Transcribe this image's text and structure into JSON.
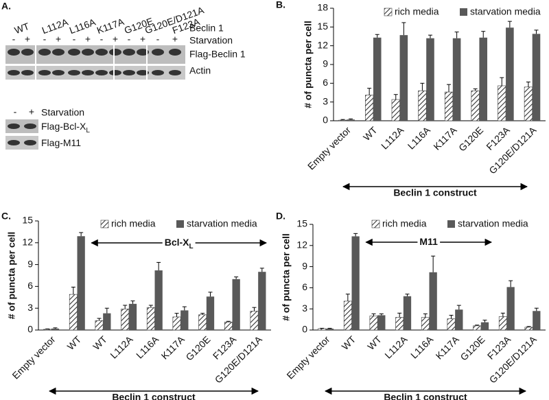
{
  "panel_a": {
    "label": "A.",
    "lanes": [
      "WT",
      "L112A",
      "L116A",
      "K117A",
      "G120E",
      "G120E/D121A",
      "F123A"
    ],
    "signs": [
      "-",
      "+"
    ],
    "rows": [
      "Beclin 1",
      "Starvation",
      "Flag-Beclin 1",
      "Actin"
    ],
    "inset": {
      "label": "Starvation",
      "rows": [
        {
          "text": "Flag-Bcl-X",
          "subscript": "L"
        },
        {
          "text": "Flag-M11"
        }
      ]
    }
  },
  "chart_data": [
    {
      "type": "bar",
      "panel": "B.",
      "ylabel": "# of puncta per cell",
      "xlabel": "Beclin 1 construct",
      "ylim": [
        0,
        18
      ],
      "yticks": [
        0,
        3,
        6,
        9,
        12,
        15,
        18
      ],
      "categories": [
        "Empty vector",
        "WT",
        "L112A",
        "L116A",
        "K117A",
        "G120E",
        "F123A",
        "G120E/D121A"
      ],
      "series": [
        {
          "name": "rich media",
          "color": "#333333",
          "pattern": "hatch",
          "values": [
            0.1,
            4.1,
            3.4,
            4.8,
            4.6,
            4.8,
            5.6,
            5.4
          ],
          "errors": [
            0.1,
            1.1,
            0.8,
            1.2,
            1.2,
            0.3,
            1.3,
            0.8
          ]
        },
        {
          "name": "starvation media",
          "color": "#595959",
          "values": [
            0.2,
            13.3,
            13.7,
            13.2,
            13.2,
            13.3,
            14.9,
            13.9
          ],
          "errors": [
            0.1,
            0.5,
            2.0,
            0.5,
            1.0,
            1.0,
            1.0,
            0.6
          ]
        }
      ]
    },
    {
      "type": "bar",
      "panel": "C.",
      "ylabel": "# of puncta per cell",
      "xlabel": "Beclin 1 construct",
      "annotation": {
        "text": "Bcl-X",
        "subscript": "L"
      },
      "ylim": [
        0,
        15
      ],
      "yticks": [
        0,
        3,
        6,
        9,
        12,
        15
      ],
      "categories": [
        "Empty vector",
        "WT",
        "WT",
        "L112A",
        "L116A",
        "K117A",
        "G120E",
        "F123A",
        "G120E/D121A"
      ],
      "series": [
        {
          "name": "rich media",
          "color": "#333333",
          "pattern": "hatch",
          "values": [
            0.1,
            4.9,
            1.3,
            2.9,
            3.1,
            1.8,
            2.1,
            1.1,
            2.6
          ],
          "errors": [
            0.05,
            1.0,
            0.3,
            0.5,
            0.3,
            0.5,
            0.2,
            0.1,
            0.5
          ]
        },
        {
          "name": "starvation media",
          "color": "#595959",
          "values": [
            0.2,
            12.9,
            2.3,
            3.6,
            8.2,
            2.7,
            4.6,
            7.0,
            8.0
          ],
          "errors": [
            0.1,
            0.5,
            0.7,
            0.4,
            1.1,
            0.5,
            0.6,
            0.3,
            0.5
          ]
        }
      ]
    },
    {
      "type": "bar",
      "panel": "D.",
      "ylabel": "# of puncta per cell",
      "xlabel": "Beclin 1 construct",
      "annotation": {
        "text": "M11"
      },
      "ylim": [
        0,
        15
      ],
      "yticks": [
        0,
        3,
        6,
        9,
        12,
        15
      ],
      "categories": [
        "Empty vector",
        "WT",
        "WT",
        "L112A",
        "L116A",
        "K117A",
        "G120E",
        "F123A",
        "G120E/D121A"
      ],
      "series": [
        {
          "name": "rich media",
          "color": "#333333",
          "pattern": "hatch",
          "values": [
            0.2,
            4.1,
            2.0,
            1.8,
            1.8,
            1.6,
            0.6,
            1.9,
            0.4
          ],
          "errors": [
            0.05,
            1.0,
            0.3,
            0.6,
            0.5,
            0.5,
            0.1,
            0.5,
            0.1
          ]
        },
        {
          "name": "starvation media",
          "color": "#595959",
          "values": [
            0.2,
            13.3,
            2.1,
            4.8,
            8.2,
            2.9,
            1.1,
            6.1,
            2.7
          ],
          "errors": [
            0.05,
            0.4,
            0.2,
            0.3,
            2.3,
            0.6,
            0.3,
            0.9,
            0.4
          ]
        }
      ]
    }
  ]
}
